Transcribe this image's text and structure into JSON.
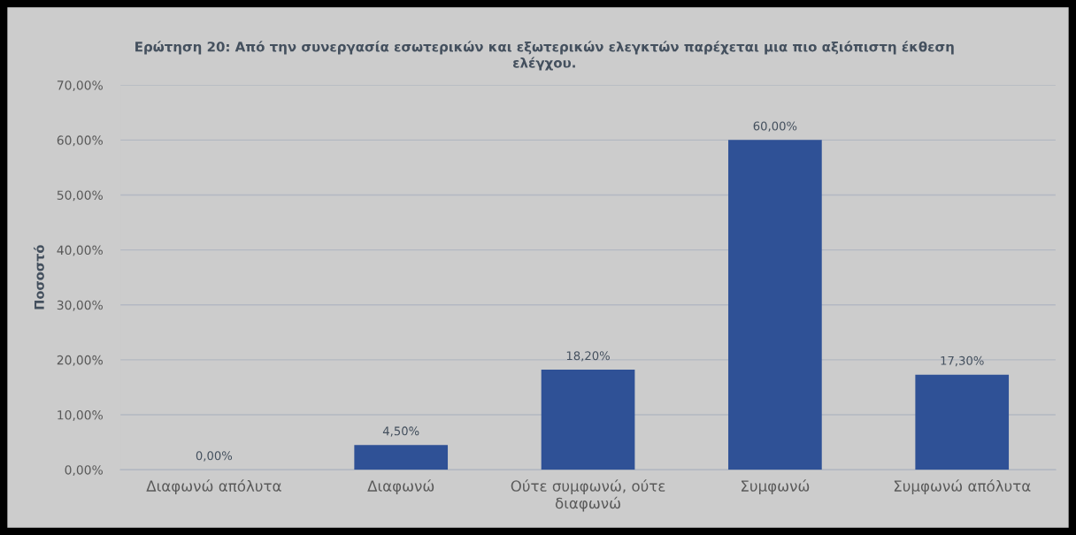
{
  "chart_data": {
    "type": "bar",
    "title": "Ερώτηση 20: Από την συνεργασία εσωτερικών και εξωτερικών ελεγκτών παρέχεται μια πιο αξιόπιστη έκθεση\nελέγχου.",
    "ylabel": "Ποσοστό",
    "categories": [
      "Διαφωνώ απόλυτα",
      "Διαφωνώ",
      "Ούτε συμφωνώ, ούτε\nδιαφωνώ",
      "Συμφωνώ",
      "Συμφωνώ απόλυτα"
    ],
    "values": [
      0,
      4.5,
      18.2,
      60,
      17.3
    ],
    "color": "#2f5196",
    "value_labels": [
      "0,00%",
      "4,50%",
      "18,20%",
      "60,00%",
      "17,30%"
    ],
    "ylim": [
      0,
      70
    ],
    "yticks": [
      {
        "value": 0,
        "label": "0,00%"
      },
      {
        "value": 10,
        "label": "10,00%"
      },
      {
        "value": 20,
        "label": "20,00%"
      },
      {
        "value": 30,
        "label": "30,00%"
      },
      {
        "value": 40,
        "label": "40,00%"
      },
      {
        "value": 50,
        "label": "50,00%"
      },
      {
        "value": 60,
        "label": "60,00%"
      },
      {
        "value": 70,
        "label": "70,00%"
      }
    ],
    "grid": "y"
  }
}
